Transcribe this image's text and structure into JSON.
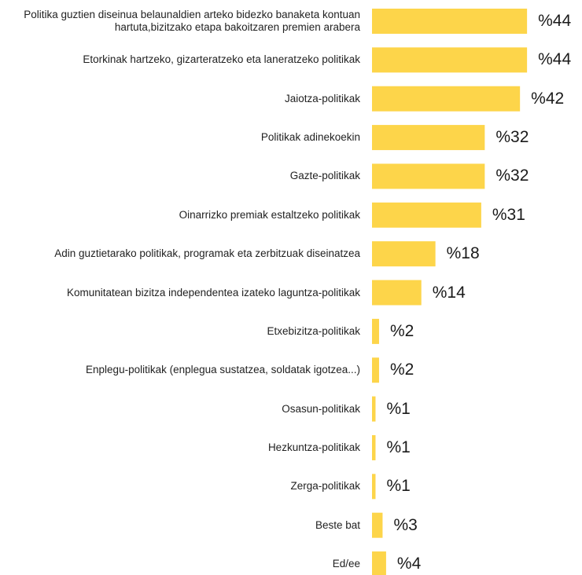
{
  "chart_data": {
    "type": "bar",
    "orientation": "horizontal",
    "color": "#fdd54a",
    "categories": [
      "Politika guztien diseinua belaunaldien arteko bidezko banaketa kontuan hartuta,bizitzako etapa bakoitzaren premien arabera",
      "Etorkinak hartzeko, gizarteratzeko eta laneratzeko politikak",
      "Jaiotza-politikak",
      "Politikak adinekoekin",
      "Gazte-politikak",
      "Oinarrizko premiak estaltzeko politikak",
      "Adin guztietarako politikak, programak eta zerbitzuak diseinatzea",
      "Komunitatean bizitza independentea izateko laguntza-politikak",
      "Etxebizitza-politikak",
      "Enplegu-politikak (enplegua sustatzea, soldatak igotzea...)",
      "Osasun-politikak",
      "Hezkuntza-politikak",
      "Zerga-politikak",
      "Beste bat",
      "Ed/ee"
    ],
    "values": [
      44,
      44,
      42,
      32,
      32,
      31,
      18,
      14,
      2,
      2,
      1,
      1,
      1,
      3,
      4
    ],
    "value_labels": [
      "%44",
      "%44",
      "%42",
      "%32",
      "%32",
      "%31",
      "%18",
      "%14",
      "%2",
      "%2",
      "%1",
      "%1",
      "%1",
      "%3",
      "%4"
    ]
  }
}
